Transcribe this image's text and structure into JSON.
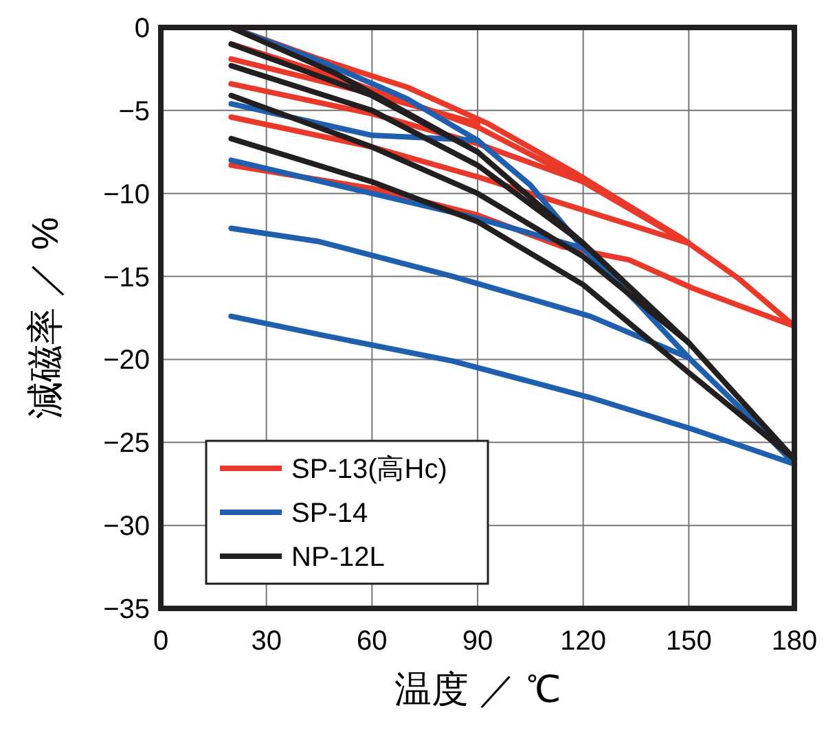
{
  "chart_data": {
    "type": "line",
    "xlabel": "温度 ／ ℃",
    "ylabel": "減磁率 ／ %",
    "xlim": [
      0,
      180
    ],
    "xticks": [
      0,
      30,
      60,
      90,
      120,
      150,
      180
    ],
    "ylim": [
      -35,
      0
    ],
    "yticks": [
      0,
      -5,
      -10,
      -15,
      -20,
      -25,
      -30,
      -35
    ],
    "grid": true,
    "legend": "bottom left",
    "line_style": "solid",
    "marker": "none",
    "series": [
      {
        "name": "SP-13(高Hc)",
        "color": "#e8392b",
        "x": [
          20,
          45,
          70,
          93,
          118,
          148,
          164,
          180
        ],
        "values": [
          0,
          -1.9,
          -3.6,
          -5.8,
          -8.8,
          -12.7,
          -15.1,
          -18
        ]
      },
      {
        "color": "#e8392b",
        "x": [
          20,
          60,
          90,
          114,
          133,
          151,
          180
        ],
        "values": [
          -8.3,
          -9.7,
          -11.3,
          -13.2,
          -14,
          -15.7,
          -18
        ]
      },
      {
        "color": "#e8392b",
        "x": [
          20,
          50,
          90,
          120,
          150
        ],
        "values": [
          -1,
          -3,
          -6,
          -9.3,
          -13
        ]
      },
      {
        "color": "#e8392b",
        "x": [
          20,
          60,
          90,
          120,
          150
        ],
        "values": [
          -5.4,
          -7.2,
          -9,
          -11,
          -13
        ]
      },
      {
        "color": "#e8392b",
        "x": [
          20,
          60,
          90,
          120
        ],
        "values": [
          -3.4,
          -5.2,
          -7,
          -9.3
        ]
      },
      {
        "color": "#e8392b",
        "x": [
          20,
          60,
          90
        ],
        "values": [
          -1.9,
          -4,
          -5.8
        ]
      },
      {
        "name": "SP-14",
        "color": "#1f5fae",
        "x": [
          20,
          45,
          70,
          90,
          105,
          120,
          135,
          150,
          165,
          180
        ],
        "values": [
          0,
          -2,
          -4.3,
          -6.8,
          -9.5,
          -13.3,
          -16.5,
          -19.9,
          -23,
          -26.3
        ]
      },
      {
        "color": "#1f5fae",
        "x": [
          20,
          45,
          83,
          122,
          151,
          180
        ],
        "values": [
          -17.4,
          -18.5,
          -20.1,
          -22.3,
          -24.2,
          -26.3
        ]
      },
      {
        "color": "#1f5fae",
        "x": [
          20,
          45,
          83,
          122,
          150
        ],
        "values": [
          -12.1,
          -12.9,
          -15,
          -17.4,
          -19.9
        ]
      },
      {
        "color": "#1f5fae",
        "x": [
          20,
          60,
          90,
          120
        ],
        "values": [
          -8,
          -10,
          -11.5,
          -13.3
        ]
      },
      {
        "color": "#1f5fae",
        "x": [
          20,
          60,
          90
        ],
        "values": [
          -4.6,
          -6.5,
          -6.8
        ]
      },
      {
        "name": "NP-12L",
        "color": "#231f20",
        "x": [
          20,
          50,
          90,
          120,
          150,
          180
        ],
        "values": [
          0,
          -2.8,
          -7.5,
          -13,
          -19,
          -26
        ]
      },
      {
        "color": "#231f20",
        "x": [
          20,
          60,
          90,
          120,
          150,
          165,
          180
        ],
        "values": [
          -6.7,
          -9.3,
          -11.7,
          -15.5,
          -20.8,
          -23.4,
          -26
        ]
      },
      {
        "color": "#231f20",
        "x": [
          20,
          60,
          90,
          120,
          150
        ],
        "values": [
          -4.1,
          -7.2,
          -10,
          -13.8,
          -19
        ]
      },
      {
        "color": "#231f20",
        "x": [
          20,
          60,
          90,
          120
        ],
        "values": [
          -2.3,
          -5,
          -8.3,
          -13
        ]
      },
      {
        "color": "#231f20",
        "x": [
          20,
          60,
          90
        ],
        "values": [
          -1,
          -4.1,
          -7.5
        ]
      }
    ]
  }
}
